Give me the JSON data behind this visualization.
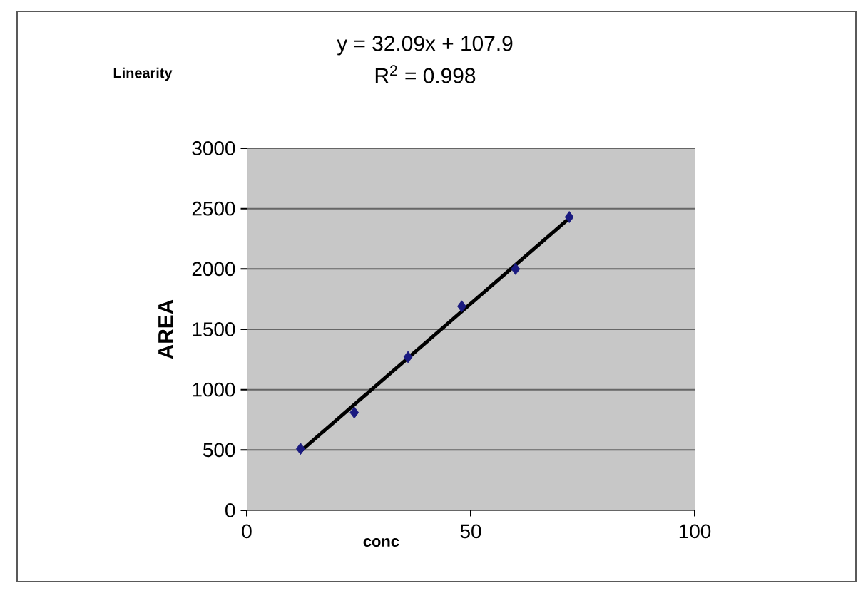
{
  "chart_data": {
    "type": "scatter",
    "title": "Linearity",
    "xlabel": "conc",
    "ylabel": "AREA",
    "annotations": [
      "y = 32.09x + 107.9",
      "R$^{2}$ = 0.998"
    ],
    "xlim": [
      0,
      100
    ],
    "xticks": [
      0,
      50,
      100
    ],
    "ylim": [
      0,
      3000
    ],
    "yticks": [
      0,
      500,
      1000,
      1500,
      2000,
      2500,
      3000
    ],
    "grid": "y",
    "marker": "diamond",
    "series": [
      {
        "color": "#1a1a80",
        "x": [
          12,
          24,
          36,
          48,
          60,
          72
        ],
        "values": [
          510,
          810,
          1270,
          1690,
          2000,
          2430
        ]
      },
      {
        "type": "line",
        "color": "#000000",
        "marker": "none",
        "line_style": "solid",
        "x": [
          12,
          72
        ],
        "values": [
          490,
          2420
        ]
      }
    ]
  }
}
